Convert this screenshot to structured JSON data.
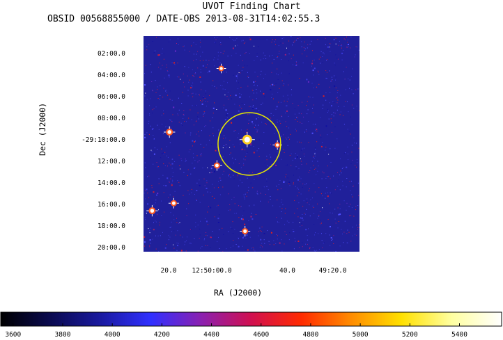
{
  "title": "UVOT Finding Chart",
  "subtitle": "OBSID 00568855000 / DATE-OBS 2013-08-31T14:02:55.3",
  "colors": {
    "background_field": "#20209a",
    "source_circle": "#e8e800",
    "colormap": [
      "#000000",
      "#0a0a50",
      "#1a1aa0",
      "#3030ff",
      "#8a20b0",
      "#d01050",
      "#ff2a00",
      "#ff8c00",
      "#ffe000",
      "#ffffa0",
      "#ffffff"
    ]
  },
  "chart_data": {
    "type": "heatmap",
    "title": "UVOT Finding Chart",
    "subtitle": "OBSID 00568855000 / DATE-OBS 2013-08-31T14:02:55.3",
    "xlabel": "RA (J2000)",
    "ylabel": "Dec (J2000)",
    "x_ticks": [
      {
        "label": "20.0",
        "value": 0.0
      },
      {
        "label": "12:50:00.0",
        "value": 0.2
      },
      {
        "label": "40.0",
        "value": 0.55
      },
      {
        "label": "49:20.0",
        "value": 0.76
      }
    ],
    "y_ticks": [
      {
        "label": "02:00.0",
        "value": 2
      },
      {
        "label": "04:00.0",
        "value": 4
      },
      {
        "label": "06:00.0",
        "value": 6
      },
      {
        "label": "08:00.0",
        "value": 8
      },
      {
        "label": "-29:10:00.0",
        "value": 10
      },
      {
        "label": "12:00.0",
        "value": 12
      },
      {
        "label": "14:00.0",
        "value": 14
      },
      {
        "label": "16:00.0",
        "value": 16
      },
      {
        "label": "18:00.0",
        "value": 18
      },
      {
        "label": "20:00.0",
        "value": 20
      }
    ],
    "ylim": [
      0.3,
      20.3
    ],
    "colorbar": {
      "range": [
        3550,
        5570
      ],
      "ticks": [
        3600,
        3800,
        4000,
        4200,
        4400,
        4600,
        4800,
        5000,
        5200,
        5400
      ]
    },
    "source_circle": {
      "ra_frac": 0.49,
      "dec": 10.3,
      "radius_frac": 0.145
    },
    "bright_stars": [
      {
        "ra_frac": 0.48,
        "dec": 9.9,
        "size": 1.0
      },
      {
        "ra_frac": 0.12,
        "dec": 9.2,
        "size": 0.6
      },
      {
        "ra_frac": 0.34,
        "dec": 12.3,
        "size": 0.5
      },
      {
        "ra_frac": 0.04,
        "dec": 16.5,
        "size": 0.6
      },
      {
        "ra_frac": 0.14,
        "dec": 15.8,
        "size": 0.5
      },
      {
        "ra_frac": 0.47,
        "dec": 18.4,
        "size": 0.5
      },
      {
        "ra_frac": 0.36,
        "dec": 3.3,
        "size": 0.4
      },
      {
        "ra_frac": 0.62,
        "dec": 10.4,
        "size": 0.4
      }
    ]
  }
}
